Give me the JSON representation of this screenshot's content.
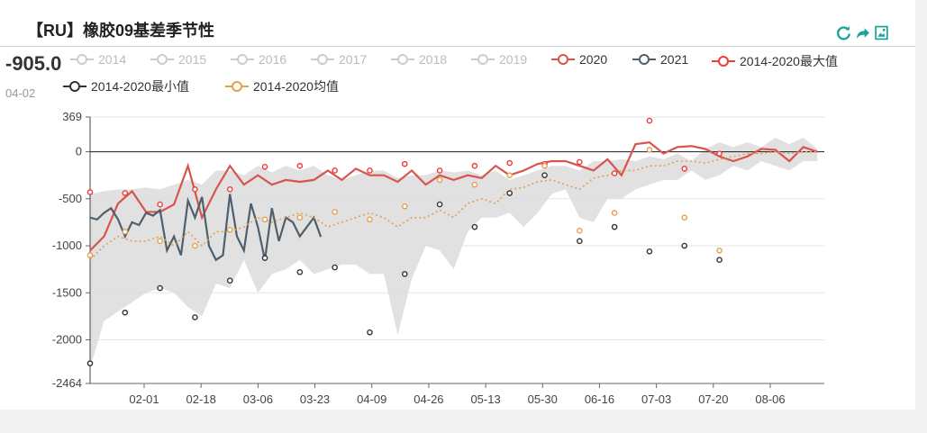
{
  "header": {
    "title": "【RU】橡胶09基差季节性"
  },
  "toolbox": {
    "items": [
      "refresh-icon",
      "share-icon",
      "save-image-icon"
    ],
    "color": "#1aa39a"
  },
  "readout": {
    "value": "-905.0",
    "date": "04-02"
  },
  "chart_data": {
    "type": "line",
    "title": "【RU】橡胶09基差季节性",
    "xlabel": "",
    "ylabel": "",
    "ylim": [
      -2464,
      369
    ],
    "yticks": [
      "369",
      "0",
      "-500",
      "-1000",
      "-1500",
      "-2000",
      "-2464"
    ],
    "x_tick_labels": [
      "02-01",
      "02-18",
      "03-06",
      "03-23",
      "04-09",
      "04-26",
      "05-13",
      "05-30",
      "06-16",
      "07-03",
      "07-20",
      "08-06"
    ],
    "legend_position": "top",
    "grid": true,
    "legend": [
      {
        "name": "2014",
        "color": "#cccccc",
        "active": false
      },
      {
        "name": "2015",
        "color": "#cccccc",
        "active": false
      },
      {
        "name": "2016",
        "color": "#cccccc",
        "active": false
      },
      {
        "name": "2017",
        "color": "#cccccc",
        "active": false
      },
      {
        "name": "2018",
        "color": "#cccccc",
        "active": false
      },
      {
        "name": "2019",
        "color": "#cccccc",
        "active": false
      },
      {
        "name": "2020",
        "color": "#d9534f",
        "active": true
      },
      {
        "name": "2021",
        "color": "#4f5f6b",
        "active": true
      },
      {
        "name": "2014-2020最大值",
        "color": "#ee3b3b",
        "active": true
      },
      {
        "name": "2014-2020最小值",
        "color": "#333333",
        "active": true
      },
      {
        "name": "2014-2020均值",
        "color": "#e0a050",
        "active": true
      }
    ],
    "band": {
      "x": [
        0,
        4,
        8,
        12,
        16,
        20,
        24,
        28,
        32,
        36,
        40,
        44,
        48,
        52,
        56,
        60,
        64,
        68,
        72,
        76,
        80,
        84,
        88,
        92,
        96,
        100,
        104,
        108,
        112,
        116,
        120,
        124,
        128,
        132,
        136,
        140,
        144,
        148,
        152,
        156,
        160,
        164,
        168,
        172,
        176,
        180,
        184,
        188,
        192,
        196,
        200,
        204,
        208
      ],
      "upper": [
        -450,
        -420,
        -400,
        -400,
        -380,
        -400,
        -350,
        -300,
        -350,
        -200,
        -200,
        -250,
        -150,
        -220,
        -150,
        -200,
        -150,
        -250,
        -300,
        -250,
        -200,
        -200,
        -280,
        -250,
        -250,
        -200,
        -220,
        -200,
        -250,
        -200,
        -300,
        -250,
        -200,
        -150,
        -150,
        -200,
        -100,
        -100,
        -80,
        -100,
        -50,
        -80,
        -20,
        -100,
        30,
        100,
        50,
        100,
        50,
        150,
        80,
        150,
        30
      ],
      "lower": [
        -2300,
        -1800,
        -1700,
        -1600,
        -1500,
        -1450,
        -1500,
        -1650,
        -1750,
        -1400,
        -1450,
        -1150,
        -1500,
        -1300,
        -1250,
        -1150,
        -1300,
        -1250,
        -1200,
        -1200,
        -1300,
        -1300,
        -1950,
        -1350,
        -1000,
        -1050,
        -1250,
        -850,
        -700,
        -700,
        -650,
        -800,
        -650,
        -450,
        -400,
        -700,
        -750,
        -500,
        -500,
        -400,
        -350,
        -300,
        -300,
        -200,
        -300,
        -250,
        -150,
        -200,
        -100,
        -150,
        -200,
        -100,
        -100
      ]
    },
    "series": [
      {
        "name": "2020",
        "color": "#d9534f",
        "x": [
          0,
          4,
          8,
          12,
          16,
          20,
          24,
          28,
          32,
          36,
          40,
          44,
          48,
          52,
          56,
          60,
          64,
          68,
          72,
          76,
          80,
          84,
          88,
          92,
          96,
          100,
          104,
          108,
          112,
          116,
          120,
          124,
          128,
          132,
          136,
          140,
          144,
          148,
          152,
          156,
          160,
          164,
          168,
          172,
          176,
          180,
          184,
          188,
          192,
          196,
          200,
          204,
          208
        ],
        "y": [
          -1050,
          -900,
          -550,
          -420,
          -640,
          -640,
          -560,
          -150,
          -700,
          -400,
          -150,
          -350,
          -250,
          -350,
          -300,
          -320,
          -300,
          -200,
          -300,
          -180,
          -250,
          -250,
          -320,
          -200,
          -350,
          -250,
          -300,
          -250,
          -280,
          -150,
          -250,
          -200,
          -130,
          -100,
          -100,
          -150,
          -200,
          -80,
          -250,
          80,
          100,
          -20,
          50,
          60,
          30,
          -50,
          -100,
          -50,
          30,
          20,
          -100,
          50,
          0
        ]
      },
      {
        "name": "2021",
        "color": "#4f5f6b",
        "x": [
          0,
          2,
          4,
          6,
          8,
          10,
          12,
          14,
          16,
          18,
          20,
          22,
          24,
          26,
          28,
          30,
          32,
          34,
          36,
          38,
          40,
          42,
          44,
          46,
          48,
          50,
          52,
          54,
          56,
          58,
          60,
          62,
          64,
          66
        ],
        "y": [
          -700,
          -720,
          -650,
          -600,
          -720,
          -900,
          -750,
          -780,
          -650,
          -680,
          -620,
          -1050,
          -900,
          -1100,
          -520,
          -700,
          -480,
          -1000,
          -1150,
          -1100,
          -450,
          -900,
          -1050,
          -550,
          -800,
          -1150,
          -600,
          -950,
          -700,
          -750,
          -900,
          -800,
          -700,
          -905
        ]
      },
      {
        "name": "2014-2020均值",
        "color": "#e0a050",
        "x": [
          0,
          4,
          8,
          12,
          16,
          20,
          24,
          28,
          32,
          36,
          40,
          44,
          48,
          52,
          56,
          60,
          64,
          68,
          72,
          76,
          80,
          84,
          88,
          92,
          96,
          100,
          104,
          108,
          112,
          116,
          120,
          124,
          128,
          132,
          136,
          140,
          144,
          148,
          152,
          156,
          160,
          164,
          168,
          172,
          176,
          180,
          184,
          188,
          192,
          196,
          200,
          204,
          208
        ],
        "y": [
          -1150,
          -1000,
          -900,
          -950,
          -950,
          -900,
          -1000,
          -850,
          -1000,
          -850,
          -850,
          -800,
          -700,
          -750,
          -700,
          -650,
          -700,
          -800,
          -750,
          -700,
          -650,
          -700,
          -800,
          -700,
          -700,
          -620,
          -700,
          -550,
          -500,
          -550,
          -400,
          -380,
          -320,
          -300,
          -350,
          -400,
          -280,
          -250,
          -200,
          -200,
          -150,
          -150,
          -100,
          -100,
          -120,
          -80,
          -50,
          -20,
          -20,
          0,
          -20,
          0,
          0
        ]
      }
    ],
    "markers": {
      "x": [
        0,
        10,
        20,
        30,
        40,
        50,
        60,
        70,
        80,
        90,
        100,
        110,
        120,
        130,
        140,
        150,
        160,
        170,
        180
      ],
      "max": [
        -430,
        -440,
        -560,
        -400,
        -400,
        -160,
        -150,
        -200,
        -200,
        -130,
        -200,
        -150,
        -120,
        -130,
        -110,
        -230,
        330,
        -180,
        -20
      ],
      "min": [
        -2250,
        -1710,
        -1450,
        -1760,
        -1370,
        -1130,
        -1280,
        -1230,
        -1920,
        -1300,
        -560,
        -800,
        -440,
        -250,
        -950,
        -800,
        -1060,
        -1000,
        -1150
      ],
      "mean": [
        -1100,
        -850,
        -950,
        -1000,
        -830,
        -720,
        -700,
        -640,
        -720,
        -580,
        -300,
        -350,
        -250,
        -150,
        -840,
        -650,
        20,
        -700,
        -1050
      ]
    }
  }
}
